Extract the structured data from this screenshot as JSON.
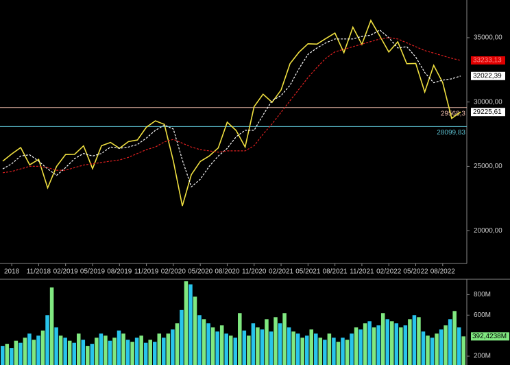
{
  "chart_data": [
    {
      "type": "line",
      "categories": [
        null,
        "2018",
        null,
        null,
        "11/2018",
        null,
        null,
        "02/2019",
        null,
        null,
        "05/2019",
        null,
        null,
        "08/2019",
        null,
        null,
        "11/2019",
        null,
        null,
        "02/2020",
        null,
        null,
        "05/2020",
        null,
        null,
        "08/2020",
        null,
        null,
        "11/2020",
        null,
        null,
        "02/2021",
        null,
        null,
        "05/2021",
        null,
        null,
        "08/2021",
        null,
        null,
        "11/2021",
        null,
        null,
        "02/2022",
        null,
        null,
        "05/2022",
        null,
        null,
        "08/2022",
        null,
        null
      ],
      "series": [
        {
          "color": "#f0e040",
          "dash": false,
          "values": [
            25400,
            25960,
            26460,
            25120,
            25540,
            23330,
            25000,
            25920,
            25930,
            26590,
            24820,
            26600,
            26860,
            26400,
            26920,
            27050,
            28050,
            28540,
            28260,
            25410,
            21920,
            24350,
            25380,
            25810,
            26430,
            28430,
            27780,
            26500,
            29640,
            30610,
            29980,
            30930,
            32980,
            33870,
            34530,
            34500,
            34940,
            35360,
            33840,
            35820,
            34480,
            36340,
            35130,
            33890,
            34680,
            32980,
            33000,
            30780,
            32850,
            31510,
            28730,
            29225.61
          ]
        },
        {
          "color": "#ffffff",
          "dash": true,
          "values": [
            24800,
            25200,
            25800,
            25900,
            25400,
            24800,
            24300,
            24900,
            25600,
            26000,
            25800,
            26000,
            26500,
            26400,
            26500,
            26700,
            27200,
            27800,
            28200,
            27900,
            25500,
            23400,
            24000,
            25000,
            25800,
            26400,
            27300,
            27800,
            27800,
            29000,
            30100,
            30500,
            31300,
            32600,
            33700,
            34200,
            34600,
            34900,
            34900,
            34900,
            35100,
            35200,
            35600,
            35000,
            34200,
            34300,
            33500,
            32300,
            31500,
            31700,
            31800,
            32022.39
          ]
        },
        {
          "color": "#e02020",
          "dash": true,
          "values": [
            24500,
            24600,
            24800,
            25000,
            25000,
            24900,
            24700,
            24700,
            24900,
            25100,
            25200,
            25300,
            25400,
            25500,
            25700,
            26000,
            26300,
            26500,
            26900,
            27100,
            26800,
            26500,
            26300,
            26200,
            26100,
            26200,
            26200,
            26200,
            26600,
            27500,
            28300,
            29200,
            30100,
            31000,
            31900,
            32700,
            33400,
            33900,
            34100,
            34300,
            34500,
            34700,
            34900,
            35000,
            34900,
            34600,
            34300,
            34000,
            33800,
            33600,
            33400,
            33233.13
          ]
        }
      ],
      "ylim": [
        17450,
        37930
      ],
      "yticks": [
        {
          "value": 20000,
          "label": "20000,00"
        },
        {
          "value": 25000,
          "label": "25000,00"
        },
        {
          "value": 30000,
          "label": "30000,00"
        },
        {
          "value": 35000,
          "label": "35000,00"
        }
      ],
      "hlines": [
        {
          "value": 29568.3,
          "label": "29568,3",
          "color": "#e8b8a8"
        },
        {
          "value": 28099.83,
          "label": "28099,83",
          "color": "#5cc0d0"
        }
      ],
      "price_labels": [
        {
          "value": 33233.13,
          "label": "33233,13",
          "bg": "#e00000",
          "fg": "#ff9090"
        },
        {
          "value": 32022.39,
          "label": "32022,39",
          "bg": "#ffffff",
          "fg": "#000000"
        },
        {
          "value": 29225.61,
          "label": "29225,61",
          "bg": "#ffffff",
          "fg": "#000000"
        }
      ]
    },
    {
      "type": "bar",
      "colors": [
        "#28c4ec",
        "#80e880"
      ],
      "values": [
        300,
        320,
        280,
        350,
        330,
        380,
        420,
        360,
        400,
        450,
        600,
        870,
        480,
        400,
        380,
        350,
        330,
        420,
        360,
        300,
        320,
        380,
        420,
        400,
        350,
        380,
        450,
        420,
        360,
        340,
        380,
        400,
        330,
        360,
        340,
        420,
        380,
        420,
        460,
        520,
        650,
        930,
        900,
        780,
        600,
        560,
        520,
        480,
        440,
        500,
        420,
        400,
        380,
        620,
        450,
        400,
        520,
        480,
        460,
        560,
        440,
        580,
        520,
        620,
        480,
        440,
        420,
        380,
        400,
        460,
        420,
        380,
        360,
        420,
        380,
        340,
        380,
        360,
        420,
        480,
        460,
        520,
        540,
        480,
        500,
        620,
        560,
        540,
        520,
        480,
        500,
        560,
        600,
        580,
        440,
        400,
        380,
        420,
        460,
        500,
        560,
        640,
        480,
        392.4238
      ],
      "ylim": [
        60,
        950
      ],
      "yticks": [
        {
          "value": 200,
          "label": "200M"
        },
        {
          "value": 600,
          "label": "600M"
        },
        {
          "value": 800,
          "label": "800M"
        }
      ],
      "last_label": {
        "value": 392.4238,
        "label": "392,4238M",
        "bg": "#80e880",
        "fg": "#000000"
      }
    }
  ]
}
